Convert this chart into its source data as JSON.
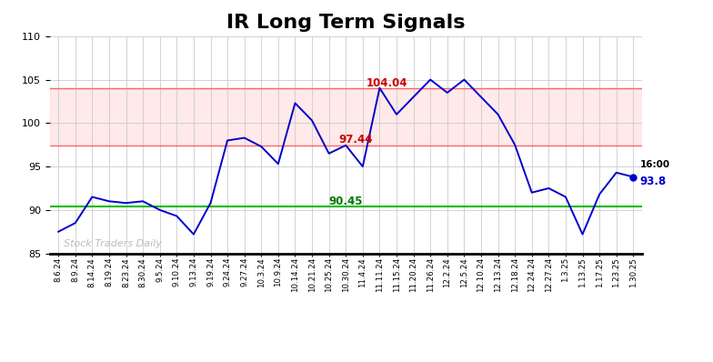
{
  "title": "IR Long Term Signals",
  "xlabels": [
    "8.6.24",
    "8.9.24",
    "8.14.24",
    "8.19.24",
    "8.23.24",
    "8.30.24",
    "9.5.24",
    "9.10.24",
    "9.13.24",
    "9.19.24",
    "9.24.24",
    "9.27.24",
    "10.3.24",
    "10.9.24",
    "10.14.24",
    "10.21.24",
    "10.25.24",
    "10.30.24",
    "11.4.24",
    "11.11.24",
    "11.15.24",
    "11.20.24",
    "11.26.24",
    "12.2.24",
    "12.5.24",
    "12.10.24",
    "12.13.24",
    "12.18.24",
    "12.24.24",
    "12.27.24",
    "1.3.25",
    "1.13.25",
    "1.17.25",
    "1.23.25",
    "1.30.25"
  ],
  "yvalues": [
    87.5,
    88.5,
    91.5,
    91.0,
    90.8,
    91.0,
    90.0,
    89.3,
    87.2,
    90.8,
    98.0,
    98.3,
    97.3,
    95.3,
    102.3,
    100.3,
    96.5,
    97.44,
    95.0,
    104.04,
    101.0,
    103.0,
    105.0,
    103.5,
    105.0,
    103.0,
    101.0,
    97.5,
    92.0,
    92.5,
    91.5,
    87.2,
    91.8,
    94.3,
    93.8
  ],
  "ylim": [
    85,
    110
  ],
  "hline_green": 90.45,
  "hline_red_lower": 97.44,
  "hline_red_upper": 104.04,
  "hline_green_color": "#00bb00",
  "hline_red_color": "#ff6666",
  "hband_alpha": 0.25,
  "hband_color": "#ffaaaa",
  "line_color": "#0000cc",
  "dot_color": "#0000cc",
  "label_104": "104.04",
  "label_97": "97.44",
  "label_90": "90.45",
  "label_104_idx": 19,
  "label_97_idx": 17,
  "label_90_idx": 16,
  "label_time": "16:00",
  "label_val": "93.8",
  "watermark": "Stock Traders Daily",
  "watermark_color": "#bbbbbb",
  "grid_color": "#cccccc",
  "bg_color": "#ffffff",
  "title_fontsize": 16,
  "figwidth": 7.84,
  "figheight": 3.98,
  "dpi": 100
}
